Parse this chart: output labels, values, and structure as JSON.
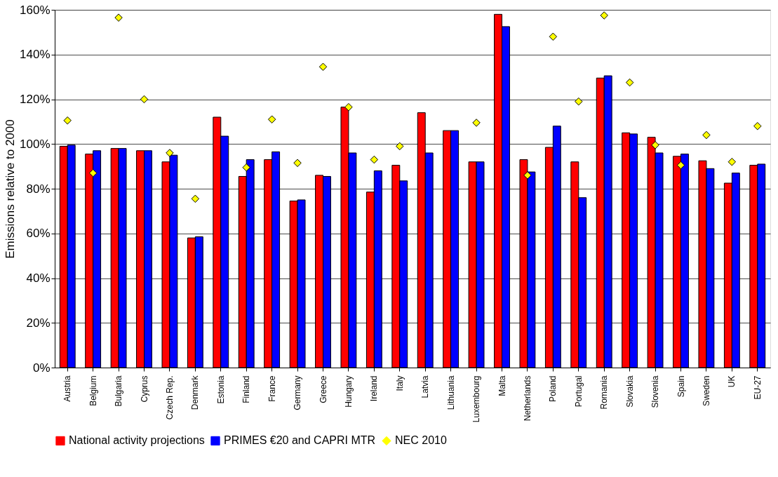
{
  "chart_data": {
    "type": "bar",
    "ylabel": "Emissions relative to 2000",
    "categories": [
      "Austria",
      "Belgium",
      "Bulgaria",
      "Cyprus",
      "Czech Rep.",
      "Denmark",
      "Estonia",
      "Finland",
      "France",
      "Germany",
      "Greece",
      "Hungary",
      "Ireland",
      "Italy",
      "Latvia",
      "Lithuania",
      "Luxembourg",
      "Malta",
      "Netherlands",
      "Poland",
      "Portugal",
      "Romania",
      "Slovakia",
      "Slovenia",
      "Spain",
      "Sweden",
      "UK",
      "EU-27"
    ],
    "series": [
      {
        "name": "National activity projections",
        "color": "#ff0000",
        "values": [
          99,
          95.5,
          98,
          97,
          92,
          58,
          112,
          85.5,
          93,
          74.5,
          86,
          116.5,
          78.5,
          90.5,
          114,
          106,
          92,
          158,
          93,
          98.5,
          92,
          129.5,
          105,
          103,
          94.5,
          92.5,
          82.5,
          90.5
        ]
      },
      {
        "name": "PRIMES €20 and CAPRI MTR",
        "color": "#0000ff",
        "values": [
          99.5,
          97,
          98,
          97,
          95,
          58.5,
          103.5,
          93,
          96.5,
          75,
          85.5,
          96,
          88,
          83.5,
          96,
          106,
          92,
          152.5,
          87.5,
          108,
          76,
          130.5,
          104.5,
          96,
          95.5,
          89,
          87,
          91
        ]
      },
      {
        "name": "NEC 2010",
        "type": "scatter",
        "marker": "diamond",
        "color": "#ffff00",
        "values": [
          110.5,
          87,
          156.5,
          120,
          96,
          75.5,
          null,
          89.5,
          111,
          91.5,
          134.5,
          116.5,
          93,
          99,
          null,
          null,
          109.5,
          null,
          86,
          148,
          119,
          157.5,
          127.5,
          99.5,
          90.5,
          104,
          92,
          108
        ]
      }
    ],
    "ylim": [
      0,
      160
    ],
    "yticks": [
      {
        "value": 0,
        "label": "0%"
      },
      {
        "value": 20,
        "label": "20%"
      },
      {
        "value": 40,
        "label": "40%"
      },
      {
        "value": 60,
        "label": "60%"
      },
      {
        "value": 80,
        "label": "80%"
      },
      {
        "value": 100,
        "label": "100%"
      },
      {
        "value": 120,
        "label": "120%"
      },
      {
        "value": 140,
        "label": "140%"
      },
      {
        "value": 160,
        "label": "160%"
      }
    ],
    "grid": "y",
    "legend": "bottom"
  }
}
